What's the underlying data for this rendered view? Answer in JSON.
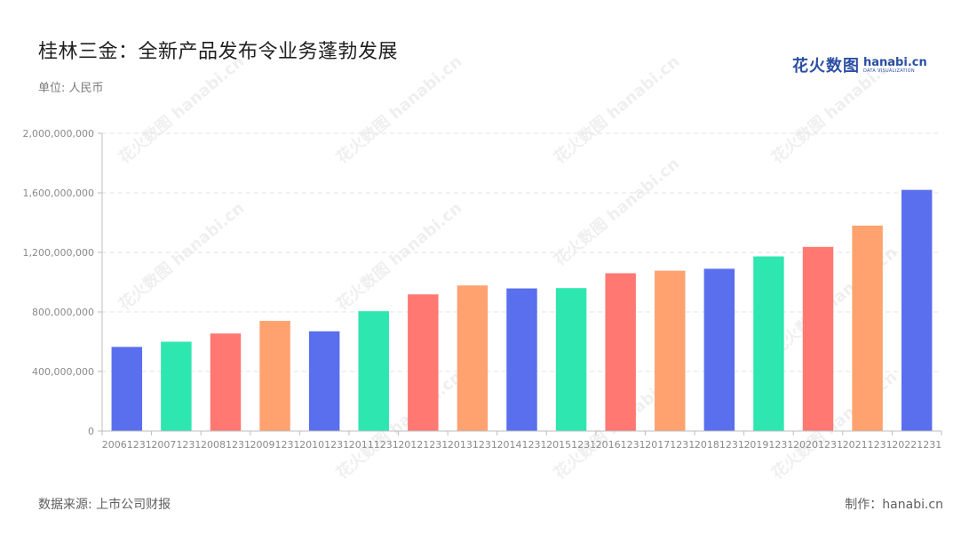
{
  "header": {
    "title": "桂林三金：全新产品发布令业务蓬勃发展",
    "unit": "单位: 人民币"
  },
  "logo": {
    "cn": "花火数图",
    "en": "hanabi.cn",
    "sub": "DATA VISUALIZATION"
  },
  "footer": {
    "source": "数据来源: 上市公司财报",
    "credit": "制作：hanabi.cn"
  },
  "colors": {
    "palette": [
      "#5a6fee",
      "#2ee6b0",
      "#ff7872",
      "#ffa26f"
    ],
    "grid": "#e3e3e3",
    "axis": "#bdbdbd"
  },
  "chart_data": {
    "type": "bar",
    "categories": [
      "20061231",
      "20071231",
      "20081231",
      "20091231",
      "20101231",
      "20111231",
      "20121231",
      "20131231",
      "20141231",
      "20151231",
      "20161231",
      "20171231",
      "20181231",
      "20191231",
      "20201231",
      "20211231",
      "20221231"
    ],
    "values": [
      565000000,
      600000000,
      655000000,
      740000000,
      670000000,
      805000000,
      918000000,
      978000000,
      958000000,
      960000000,
      1060000000,
      1077000000,
      1090000000,
      1173000000,
      1237000000,
      1380000000,
      1620000000
    ],
    "yticks": [
      "0",
      "400,000,000",
      "800,000,000",
      "1,200,000,000",
      "1,600,000,000",
      "2,000,000,000"
    ],
    "ylim": [
      0,
      2000000000
    ],
    "grid": true,
    "xlabel": "",
    "ylabel": ""
  }
}
